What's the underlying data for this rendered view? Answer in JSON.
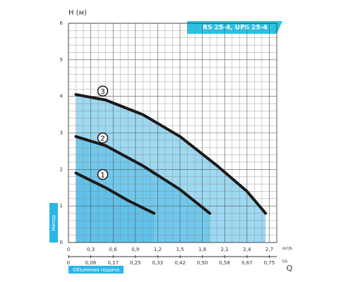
{
  "chart_data": {
    "type": "line",
    "title": "RS 25-4, UPS 25-4",
    "y_label": "H (м)",
    "y_axis_name": "Напор",
    "x_axis_name": "Объемная подача",
    "x_symbol": "Q",
    "x_unit": "m³/h",
    "x2_unit": "l/s",
    "xlim": [
      0,
      2.8
    ],
    "xticks": [
      0,
      {
        "value": 0.3,
        "label": "0,3"
      },
      {
        "value": 0.6,
        "label": "0,6"
      },
      {
        "value": 0.9,
        "label": "0,9"
      },
      {
        "value": 1.2,
        "label": "1,2"
      },
      {
        "value": 1.5,
        "label": "1,5"
      },
      {
        "value": 1.8,
        "label": "1,8"
      },
      {
        "value": 2.1,
        "label": "2,1"
      },
      {
        "value": 2.4,
        "label": "2,4"
      },
      {
        "value": 2.7,
        "label": "2,7"
      }
    ],
    "x2lim": [
      0,
      0.778
    ],
    "x2ticks": [
      0,
      {
        "value": 0.083,
        "label": "0,08"
      },
      {
        "value": 0.167,
        "label": "0,17"
      },
      {
        "value": 0.25,
        "label": "0,25"
      },
      {
        "value": 0.333,
        "label": "0,33"
      },
      {
        "value": 0.417,
        "label": "0,42"
      },
      {
        "value": 0.5,
        "label": "0,50"
      },
      {
        "value": 0.583,
        "label": "0,58"
      },
      {
        "value": 0.667,
        "label": "0,67"
      },
      {
        "value": 0.75,
        "label": "0,75"
      }
    ],
    "ylim": [
      0,
      6
    ],
    "yticks": [
      0,
      1,
      2,
      3,
      4,
      5,
      6
    ],
    "grid": true,
    "series": [
      {
        "name": "1",
        "color": "#1a1a1a",
        "x": [
          0.1,
          0.5,
          0.8,
          1.15
        ],
        "values": [
          1.9,
          1.5,
          1.15,
          0.8
        ]
      },
      {
        "name": "2",
        "color": "#1a1a1a",
        "x": [
          0.1,
          0.5,
          1.0,
          1.5,
          1.9
        ],
        "values": [
          2.9,
          2.65,
          2.1,
          1.45,
          0.8
        ]
      },
      {
        "name": "3",
        "color": "#1a1a1a",
        "x": [
          0.1,
          0.5,
          1.0,
          1.5,
          2.0,
          2.4,
          2.65
        ],
        "values": [
          4.05,
          3.9,
          3.5,
          2.9,
          2.1,
          1.4,
          0.8
        ]
      }
    ]
  }
}
